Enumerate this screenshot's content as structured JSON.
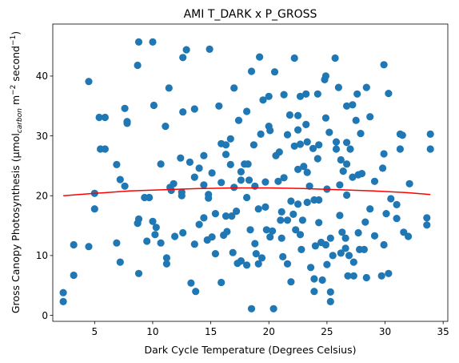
{
  "chart_data": {
    "type": "scatter",
    "title": "AMI T_DARK x P_GROSS",
    "xlabel": "Dark Cycle Temperature (Degrees Celsius)",
    "ylabel": {
      "prefix": "Gross Canopy Photosynthesis (µmol",
      "subscript": "carbon",
      "middle": " m",
      "sup1": "−2",
      "middle2": " second",
      "sup2": "−1",
      "suffix": ")"
    },
    "xlim": [
      1.4,
      35.4
    ],
    "ylim": [
      -1.0,
      48.7
    ],
    "xticks": [
      5,
      10,
      15,
      20,
      25,
      30,
      35
    ],
    "yticks": [
      0,
      10,
      20,
      30,
      40
    ],
    "grid": false,
    "colors": {
      "points": "#1f77b4",
      "fit": "#ff0000"
    },
    "fit_line": {
      "x": [
        2.3,
        5,
        8,
        11,
        14,
        17,
        20,
        23,
        26,
        29,
        32,
        33.9
      ],
      "y": [
        20.0,
        20.4,
        20.8,
        21.0,
        21.2,
        21.3,
        21.3,
        21.2,
        21.0,
        20.8,
        20.5,
        20.2
      ]
    },
    "points": [
      [
        2.3,
        3.8
      ],
      [
        2.3,
        2.3
      ],
      [
        3.2,
        11.8
      ],
      [
        3.2,
        6.7
      ],
      [
        4.5,
        39.1
      ],
      [
        4.5,
        11.5
      ],
      [
        5.0,
        20.4
      ],
      [
        5.0,
        17.8
      ],
      [
        5.4,
        33.1
      ],
      [
        5.5,
        27.8
      ],
      [
        5.9,
        33.1
      ],
      [
        5.9,
        27.8
      ],
      [
        6.9,
        25.2
      ],
      [
        6.9,
        12.1
      ],
      [
        7.2,
        22.7
      ],
      [
        7.2,
        8.9
      ],
      [
        7.6,
        34.6
      ],
      [
        7.6,
        21.6
      ],
      [
        7.8,
        32.4
      ],
      [
        7.8,
        32.1
      ],
      [
        8.7,
        41.8
      ],
      [
        8.8,
        45.7
      ],
      [
        8.7,
        15.4
      ],
      [
        8.8,
        16.1
      ],
      [
        8.8,
        7.0
      ],
      [
        9.3,
        19.7
      ],
      [
        9.5,
        12.4
      ],
      [
        9.7,
        19.7
      ],
      [
        10.0,
        45.7
      ],
      [
        10.0,
        15.7
      ],
      [
        10.1,
        35.1
      ],
      [
        10.3,
        14.7
      ],
      [
        10.2,
        13.5
      ],
      [
        10.7,
        12.1
      ],
      [
        10.7,
        25.3
      ],
      [
        11.1,
        31.6
      ],
      [
        11.2,
        9.6
      ],
      [
        11.2,
        8.6
      ],
      [
        11.4,
        38.0
      ],
      [
        11.5,
        21.4
      ],
      [
        11.6,
        20.9
      ],
      [
        11.8,
        22.0
      ],
      [
        11.9,
        13.2
      ],
      [
        12.6,
        43.1
      ],
      [
        12.6,
        34.0
      ],
      [
        12.4,
        26.3
      ],
      [
        12.5,
        20.6
      ],
      [
        12.5,
        20.0
      ],
      [
        12.6,
        13.8
      ],
      [
        12.9,
        44.4
      ],
      [
        13.2,
        25.6
      ],
      [
        13.3,
        5.4
      ],
      [
        13.6,
        34.5
      ],
      [
        13.6,
        23.1
      ],
      [
        13.6,
        11.9
      ],
      [
        13.7,
        4.0
      ],
      [
        14.0,
        24.6
      ],
      [
        14.0,
        15.2
      ],
      [
        14.4,
        26.7
      ],
      [
        14.4,
        21.8
      ],
      [
        14.4,
        16.3
      ],
      [
        14.8,
        20.2
      ],
      [
        14.8,
        19.6
      ],
      [
        14.7,
        12.6
      ],
      [
        14.9,
        44.5
      ],
      [
        15.1,
        23.8
      ],
      [
        15.1,
        13.1
      ],
      [
        15.4,
        17.0
      ],
      [
        15.4,
        10.3
      ],
      [
        15.7,
        35.0
      ],
      [
        15.9,
        28.7
      ],
      [
        15.9,
        22.2
      ],
      [
        15.9,
        5.5
      ],
      [
        16.1,
        13.4
      ],
      [
        16.3,
        28.5
      ],
      [
        16.3,
        26.9
      ],
      [
        16.3,
        16.6
      ],
      [
        16.4,
        14.0
      ],
      [
        16.7,
        29.5
      ],
      [
        16.7,
        25.2
      ],
      [
        16.8,
        16.6
      ],
      [
        16.9,
        10.5
      ],
      [
        17.0,
        38.0
      ],
      [
        17.0,
        21.4
      ],
      [
        17.2,
        17.4
      ],
      [
        17.3,
        8.7
      ],
      [
        17.4,
        32.6
      ],
      [
        17.6,
        24.0
      ],
      [
        17.6,
        22.6
      ],
      [
        17.6,
        9.1
      ],
      [
        17.9,
        25.3
      ],
      [
        18.1,
        34.1
      ],
      [
        18.1,
        19.7
      ],
      [
        18.1,
        8.4
      ],
      [
        18.2,
        25.3
      ],
      [
        18.3,
        22.6
      ],
      [
        18.4,
        14.3
      ],
      [
        18.5,
        40.8
      ],
      [
        18.5,
        1.1
      ],
      [
        18.7,
        28.5
      ],
      [
        18.8,
        21.6
      ],
      [
        18.8,
        12.0
      ],
      [
        18.9,
        10.3
      ],
      [
        19.1,
        8.6
      ],
      [
        19.1,
        17.8
      ],
      [
        19.2,
        43.2
      ],
      [
        19.3,
        30.3
      ],
      [
        19.4,
        9.6
      ],
      [
        19.5,
        36.0
      ],
      [
        19.7,
        22.3
      ],
      [
        19.7,
        18.1
      ],
      [
        19.8,
        14.3
      ],
      [
        20.0,
        36.6
      ],
      [
        20.0,
        31.6
      ],
      [
        20.1,
        30.9
      ],
      [
        20.1,
        13.1
      ],
      [
        20.3,
        14.1
      ],
      [
        20.4,
        1.1
      ],
      [
        20.5,
        40.7
      ],
      [
        20.6,
        26.7
      ],
      [
        20.8,
        22.4
      ],
      [
        20.9,
        27.3
      ],
      [
        21.0,
        15.9
      ],
      [
        21.1,
        17.3
      ],
      [
        21.1,
        12.9
      ],
      [
        21.2,
        9.8
      ],
      [
        21.3,
        36.9
      ],
      [
        21.3,
        23.0
      ],
      [
        21.6,
        30.2
      ],
      [
        21.6,
        15.9
      ],
      [
        21.6,
        8.6
      ],
      [
        21.8,
        33.5
      ],
      [
        21.9,
        19.1
      ],
      [
        21.9,
        5.6
      ],
      [
        22.1,
        16.9
      ],
      [
        22.2,
        43.0
      ],
      [
        22.2,
        28.3
      ],
      [
        22.3,
        14.3
      ],
      [
        22.5,
        33.4
      ],
      [
        22.5,
        24.4
      ],
      [
        22.5,
        18.6
      ],
      [
        22.5,
        31.0
      ],
      [
        22.7,
        36.6
      ],
      [
        22.7,
        28.6
      ],
      [
        22.7,
        13.5
      ],
      [
        22.8,
        11.0
      ],
      [
        22.9,
        15.9
      ],
      [
        23.0,
        24.9
      ],
      [
        23.2,
        31.9
      ],
      [
        23.2,
        37.0
      ],
      [
        23.3,
        29.0
      ],
      [
        23.3,
        18.9
      ],
      [
        23.3,
        23.9
      ],
      [
        23.5,
        21.6
      ],
      [
        23.6,
        8.0
      ],
      [
        23.8,
        27.9
      ],
      [
        23.9,
        6.1
      ],
      [
        23.9,
        19.3
      ],
      [
        23.9,
        4.0
      ],
      [
        24.0,
        11.6
      ],
      [
        24.2,
        37.0
      ],
      [
        24.2,
        26.2
      ],
      [
        24.3,
        28.5
      ],
      [
        24.3,
        19.3
      ],
      [
        24.3,
        15.5
      ],
      [
        24.5,
        12.2
      ],
      [
        24.6,
        5.9
      ],
      [
        24.8,
        39.4
      ],
      [
        24.9,
        40.0
      ],
      [
        24.9,
        33.0
      ],
      [
        24.9,
        11.8
      ],
      [
        25.0,
        21.1
      ],
      [
        25.0,
        8.5
      ],
      [
        25.2,
        30.6
      ],
      [
        25.3,
        12.9
      ],
      [
        25.3,
        3.9
      ],
      [
        25.3,
        2.3
      ],
      [
        25.5,
        10.0
      ],
      [
        25.7,
        43.0
      ],
      [
        25.8,
        29.0
      ],
      [
        25.8,
        27.8
      ],
      [
        26.0,
        38.1
      ],
      [
        26.1,
        21.8
      ],
      [
        26.1,
        16.7
      ],
      [
        26.2,
        26.0
      ],
      [
        26.2,
        10.4
      ],
      [
        26.3,
        13.9
      ],
      [
        26.4,
        24.1
      ],
      [
        26.6,
        12.9
      ],
      [
        26.6,
        11.2
      ],
      [
        26.7,
        35.0
      ],
      [
        26.7,
        28.9
      ],
      [
        26.7,
        25.3
      ],
      [
        26.7,
        20.1
      ],
      [
        26.8,
        6.6
      ],
      [
        26.9,
        10.0
      ],
      [
        27.0,
        27.8
      ],
      [
        27.2,
        35.2
      ],
      [
        27.2,
        23.1
      ],
      [
        27.3,
        8.9
      ],
      [
        27.3,
        6.6
      ],
      [
        27.5,
        32.6
      ],
      [
        27.6,
        37.0
      ],
      [
        27.7,
        23.5
      ],
      [
        27.7,
        13.8
      ],
      [
        27.8,
        11.0
      ],
      [
        27.9,
        30.4
      ],
      [
        28.0,
        23.7
      ],
      [
        28.2,
        11.0
      ],
      [
        28.3,
        15.6
      ],
      [
        28.4,
        38.1
      ],
      [
        28.4,
        6.3
      ],
      [
        28.7,
        33.2
      ],
      [
        28.7,
        17.8
      ],
      [
        29.1,
        22.4
      ],
      [
        29.1,
        13.3
      ],
      [
        29.7,
        6.6
      ],
      [
        29.8,
        24.6
      ],
      [
        29.9,
        27.0
      ],
      [
        29.9,
        11.8
      ],
      [
        29.9,
        41.9
      ],
      [
        30.1,
        17.0
      ],
      [
        30.3,
        7.0
      ],
      [
        30.3,
        37.1
      ],
      [
        30.5,
        19.5
      ],
      [
        31.0,
        18.5
      ],
      [
        31.0,
        16.2
      ],
      [
        31.3,
        30.3
      ],
      [
        31.3,
        27.8
      ],
      [
        31.5,
        30.1
      ],
      [
        31.6,
        13.9
      ],
      [
        32.0,
        13.2
      ],
      [
        32.1,
        22.0
      ],
      [
        33.6,
        16.3
      ],
      [
        33.6,
        15.1
      ],
      [
        33.9,
        30.3
      ],
      [
        33.9,
        27.8
      ]
    ]
  }
}
